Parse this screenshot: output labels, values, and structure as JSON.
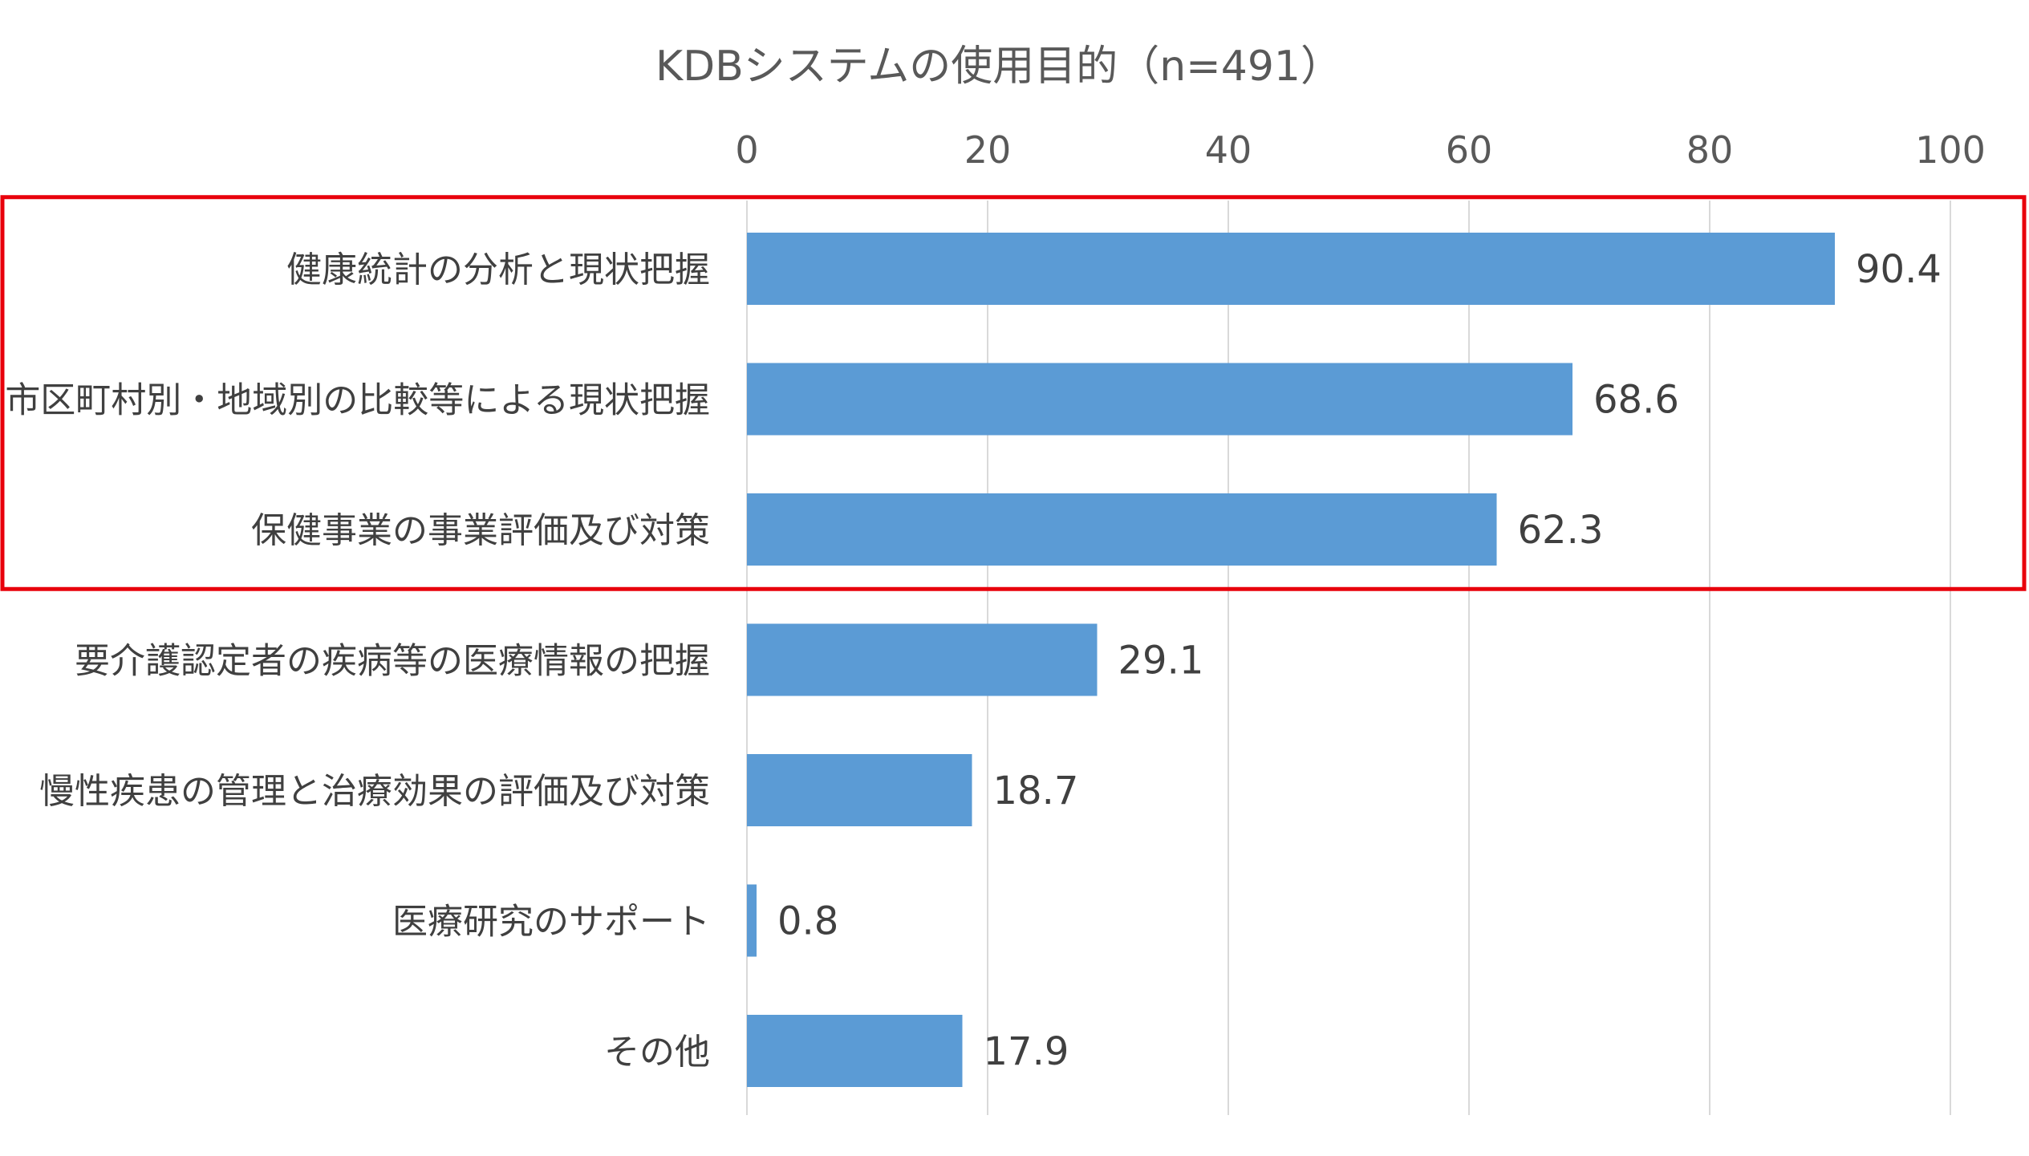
{
  "chart_data": {
    "type": "bar",
    "orientation": "horizontal",
    "title": "KDBシステムの使用目的（n=491）",
    "categories": [
      "健康統計の分析と現状把握",
      "市区町村別・地域別の比較等による現状把握",
      "保健事業の事業評価及び対策",
      "要介護認定者の疾病等の医療情報の把握",
      "慢性疾患の管理と治療効果の評価及び対策",
      "医療研究のサポート",
      "その他"
    ],
    "values": [
      90.4,
      68.6,
      62.3,
      29.1,
      18.7,
      0.8,
      17.9
    ],
    "value_labels": [
      "90.4",
      "68.6",
      "62.3",
      "29.1",
      "18.7",
      "0.8",
      "17.9"
    ],
    "xlim": [
      0,
      100
    ],
    "x_ticks": [
      "0",
      "20",
      "40",
      "60",
      "80",
      "100"
    ],
    "x_tick_values": [
      0,
      20,
      40,
      60,
      80,
      100
    ],
    "axis_position": "top",
    "grid": true,
    "highlighted_categories": 3,
    "colors": {
      "bar": "#5B9BD5",
      "grid": "#D9D9D9",
      "highlight": "#E8000B"
    }
  }
}
